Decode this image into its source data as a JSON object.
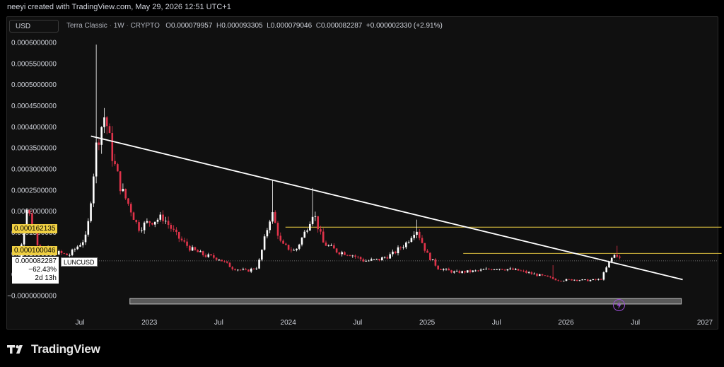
{
  "caption": "neeyi created with TradingView.com, May 29, 2026 12:51 UTC+1",
  "currency_button": "USD",
  "header": {
    "name": "Terra Classic",
    "interval": "1W",
    "market": "CRYPTO",
    "o_label": "O",
    "o_value": "0.000079957",
    "h_label": "H",
    "h_value": "0.000093305",
    "l_label": "L",
    "l_value": "0.000079046",
    "c_label": "C",
    "c_value": "0.000082287",
    "change": "+0.000002330 (+2.91%)"
  },
  "price_tags": {
    "level_high": "0.000162135",
    "level_low": "0.000100046",
    "last_price": "0.000082287",
    "last_change": "−62.43%",
    "countdown": "2d 13h",
    "ticker": "LUNCUSD"
  },
  "footer_brand": "TradingView",
  "colors": {
    "up": "#ffffff",
    "down": "#e0334a",
    "trendline": "#ffffff",
    "level": "#f0d043",
    "zone_fill": "#5a5a5a",
    "background": "#101010"
  },
  "chart_data": {
    "type": "candlestick",
    "symbol": "LUNCUSD",
    "interval": "1W",
    "ylim": [
      -5e-05,
      0.00062
    ],
    "y_ticks": [
      "0.0006000000",
      "0.0005500000",
      "0.0005000000",
      "0.0004500000",
      "0.0004000000",
      "0.0003500000",
      "0.0003000000",
      "0.0002500000",
      "0.0002000000",
      "0.0001500000",
      "0.0001000000",
      "0.0000500000",
      "−0.0000000000"
    ],
    "y_tick_values": [
      0.0006,
      0.00055,
      0.0005,
      0.00045,
      0.0004,
      0.00035,
      0.0003,
      0.00025,
      0.0002,
      0.00015,
      0.0001,
      5e-05,
      0
    ],
    "x_ticks": [
      {
        "label": "Jul",
        "t": 2022.5
      },
      {
        "label": "2023",
        "t": 2023.0
      },
      {
        "label": "Jul",
        "t": 2023.5
      },
      {
        "label": "2024",
        "t": 2024.0
      },
      {
        "label": "Jul",
        "t": 2024.5
      },
      {
        "label": "2025",
        "t": 2025.0
      },
      {
        "label": "Jul",
        "t": 2025.5
      },
      {
        "label": "2026",
        "t": 2026.0
      },
      {
        "label": "Jul",
        "t": 2026.5
      },
      {
        "label": "2027",
        "t": 2027.0
      }
    ],
    "t_range": [
      2022.06,
      2027.12
    ],
    "horizontal_levels": [
      {
        "value": 0.000162135,
        "t_start": 2023.98,
        "t_end": 2027.12
      },
      {
        "value": 0.000100046,
        "t_start": 2025.26,
        "t_end": 2027.12
      }
    ],
    "last_price_line": 8.2287e-05,
    "trendline": {
      "t1": 2022.58,
      "v1": 0.000378,
      "t2": 2026.84,
      "v2": 3.8e-05
    },
    "zone": {
      "t_start": 2022.86,
      "t_end": 2026.83,
      "v_top": -7e-06,
      "v_bottom": -2e-05
    },
    "anchors": [
      [
        2022.06,
        8.5e-05
      ],
      [
        2022.12,
        0.00021
      ],
      [
        2022.2,
        0.00012
      ],
      [
        2022.3,
        0.000105
      ],
      [
        2022.42,
        9.5e-05
      ],
      [
        2022.55,
        0.00014
      ],
      [
        2022.62,
        0.00036
      ],
      [
        2022.68,
        0.00043
      ],
      [
        2022.74,
        0.00032
      ],
      [
        2022.8,
        0.00025
      ],
      [
        2022.86,
        0.00021
      ],
      [
        2022.92,
        0.00016
      ],
      [
        2023.0,
        0.000175
      ],
      [
        2023.1,
        0.000185
      ],
      [
        2023.2,
        0.00014
      ],
      [
        2023.3,
        0.00011
      ],
      [
        2023.4,
        9.5e-05
      ],
      [
        2023.5,
        8.8e-05
      ],
      [
        2023.6,
        6.5e-05
      ],
      [
        2023.7,
        5.8e-05
      ],
      [
        2023.78,
        6.8e-05
      ],
      [
        2023.88,
        0.0002
      ],
      [
        2023.95,
        0.00012
      ],
      [
        2024.05,
        0.000105
      ],
      [
        2024.12,
        0.00015
      ],
      [
        2024.18,
        0.0002
      ],
      [
        2024.25,
        0.000125
      ],
      [
        2024.35,
        0.000105
      ],
      [
        2024.45,
        9.8e-05
      ],
      [
        2024.55,
        8.2e-05
      ],
      [
        2024.65,
        8.5e-05
      ],
      [
        2024.75,
        9.8e-05
      ],
      [
        2024.85,
        0.000125
      ],
      [
        2024.92,
        0.00016
      ],
      [
        2025.0,
        9.8e-05
      ],
      [
        2025.08,
        6.5e-05
      ],
      [
        2025.2,
        5.5e-05
      ],
      [
        2025.35,
        5.8e-05
      ],
      [
        2025.5,
        6.5e-05
      ],
      [
        2025.65,
        6e-05
      ],
      [
        2025.75,
        5.2e-05
      ],
      [
        2025.85,
        4.5e-05
      ],
      [
        2025.95,
        3.6e-05
      ],
      [
        2026.05,
        3.8e-05
      ],
      [
        2026.15,
        3.6e-05
      ],
      [
        2026.25,
        3.8e-05
      ],
      [
        2026.32,
        8.5e-05
      ],
      [
        2026.36,
        0.0001
      ],
      [
        2026.4,
        8.2e-05
      ]
    ],
    "spikes": [
      {
        "t": 2022.62,
        "high": 0.000595
      },
      {
        "t": 2023.88,
        "high": 0.000275
      },
      {
        "t": 2024.18,
        "high": 0.000255
      },
      {
        "t": 2024.92,
        "high": 0.00018
      },
      {
        "t": 2025.9,
        "high": 7.2e-05
      },
      {
        "t": 2026.36,
        "high": 0.000118
      }
    ]
  }
}
